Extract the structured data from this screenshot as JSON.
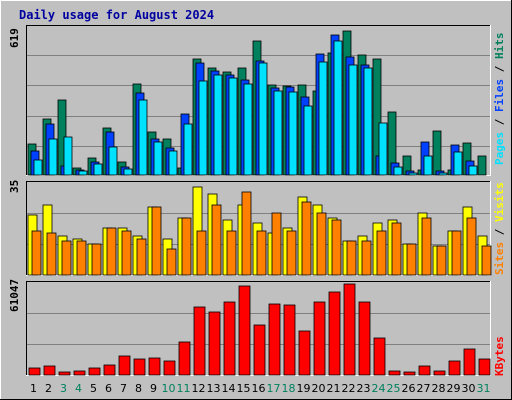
{
  "title": "Daily usage for August 2024",
  "colors": {
    "background": "#c0c0c0",
    "plot_background": "#c0c0c0",
    "grid": "#808080",
    "hits": "#00805c",
    "files": "#0040ff",
    "pages": "#00e0ff",
    "visits": "#ffff00",
    "sites": "#ff8000",
    "kbytes": "#ff0000",
    "title": "#0000a0",
    "weekday_label": "#000000",
    "weekend_label": "#00805c"
  },
  "panels": {
    "top": {
      "max_label": "619",
      "label_parts": [
        {
          "text": "Pages",
          "color": "#00e0ff"
        },
        {
          "text": " / ",
          "color": "#000000"
        },
        {
          "text": "Files",
          "color": "#0040ff"
        },
        {
          "text": " / ",
          "color": "#000000"
        },
        {
          "text": "Hits",
          "color": "#00805c"
        }
      ]
    },
    "middle": {
      "max_label": "35",
      "label_parts": [
        {
          "text": "Sites",
          "color": "#ff8000"
        },
        {
          "text": " / ",
          "color": "#000000"
        },
        {
          "text": "Visits",
          "color": "#ffff00"
        }
      ]
    },
    "bottom": {
      "max_label": "61047",
      "label_parts": [
        {
          "text": "KBytes",
          "color": "#ff0000"
        }
      ]
    }
  },
  "chart_data": {
    "type": "bar",
    "title": "Daily usage for August 2024",
    "categories": [
      "1",
      "2",
      "3",
      "4",
      "5",
      "6",
      "7",
      "8",
      "9",
      "10",
      "11",
      "12",
      "13",
      "14",
      "15",
      "16",
      "17",
      "18",
      "19",
      "20",
      "21",
      "22",
      "23",
      "24",
      "25",
      "26",
      "27",
      "28",
      "29",
      "30",
      "31"
    ],
    "weekend_days": [
      "3",
      "4",
      "10",
      "11",
      "17",
      "18",
      "24",
      "25",
      "31"
    ],
    "grid": true,
    "panels": [
      {
        "name": "top",
        "ymax": 619,
        "series": [
          {
            "name": "Hits",
            "values": [
              130,
              235,
              315,
              30,
              70,
              200,
              55,
              385,
              180,
              150,
              30,
              490,
              450,
              435,
              450,
              565,
              380,
              375,
              380,
              355,
              515,
              605,
              505,
              490,
              265,
              80,
              20,
              185,
              20,
              135,
              80
            ]
          },
          {
            "name": "Files",
            "values": [
              100,
              215,
              40,
              20,
              55,
              180,
              35,
              345,
              150,
              115,
              255,
              470,
              440,
              420,
              400,
              480,
              365,
              370,
              330,
              510,
              590,
              495,
              465,
              80,
              50,
              15,
              140,
              15,
              125,
              60,
              0
            ]
          },
          {
            "name": "Pages",
            "values": [
              65,
              150,
              160,
              15,
              45,
              120,
              25,
              315,
              140,
              100,
              215,
              395,
              420,
              410,
              385,
              470,
              355,
              350,
              290,
              475,
              565,
              465,
              450,
              220,
              35,
              10,
              80,
              10,
              95,
              40,
              0
            ]
          }
        ]
      },
      {
        "name": "middle",
        "ymax": 35,
        "series": [
          {
            "name": "Visits",
            "values": [
              23,
              27,
              15,
              14,
              12,
              18,
              18,
              15,
              26,
              14,
              22,
              34,
              31,
              21,
              27,
              20,
              16,
              18,
              30,
              27,
              22,
              13,
              15,
              20,
              21,
              12,
              24,
              11,
              17,
              26,
              15
            ]
          },
          {
            "name": "Sites",
            "values": [
              17,
              16,
              13,
              13,
              12,
              18,
              17,
              14,
              26,
              10,
              22,
              17,
              27,
              17,
              32,
              17,
              24,
              17,
              28,
              24,
              21,
              13,
              13,
              17,
              20,
              12,
              22,
              11,
              17,
              22,
              11
            ]
          }
        ]
      },
      {
        "name": "bottom",
        "ymax": 61047,
        "series": [
          {
            "name": "KBytes",
            "values": [
              5000,
              6000,
              2000,
              2500,
              4500,
              6500,
              12500,
              10500,
              11500,
              9500,
              22000,
              45500,
              42000,
              49000,
              60000,
              33500,
              47500,
              47000,
              29500,
              49000,
              55500,
              61047,
              49000,
              25000,
              2500,
              2000,
              6000,
              3000,
              9500,
              17500,
              10500
            ]
          }
        ]
      }
    ]
  }
}
